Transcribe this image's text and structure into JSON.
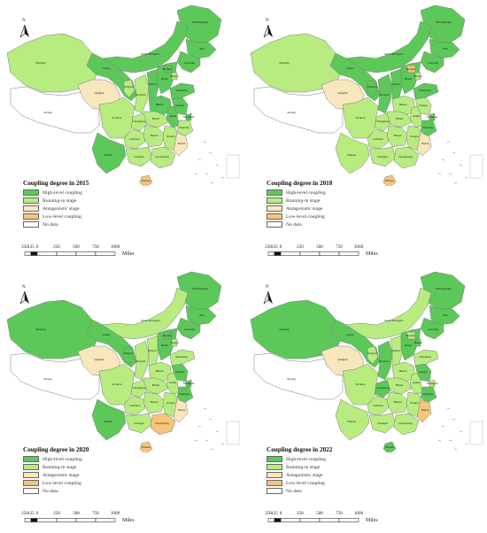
{
  "north_label": "N",
  "legend_items": [
    {
      "key": "high",
      "label": "High-level coupling",
      "color": "#5dc85a"
    },
    {
      "key": "running",
      "label": "Running-in stage",
      "color": "#b8ec80"
    },
    {
      "key": "antagonistic",
      "label": "Antagonistic stage",
      "color": "#f8e7bd"
    },
    {
      "key": "low",
      "label": "Low-level coupling",
      "color": "#f6c57a"
    },
    {
      "key": "nodata",
      "label": "No data",
      "color": "#ffffff"
    }
  ],
  "scale": {
    "ticks": [
      "250",
      "125",
      "0",
      "250",
      "500",
      "750",
      "1000"
    ],
    "unit": "Miles"
  },
  "provinces": [
    "Heilongjiang",
    "Jilin",
    "Liaoning",
    "Inner Mongolia",
    "Xinjiang",
    "Xizang",
    "Qinghai",
    "Gansu",
    "Ningxia",
    "Shaanxi",
    "Shanxi",
    "Hebei",
    "Beijing",
    "Tianjin",
    "Shandong",
    "Henan",
    "Jiangsu",
    "Anhui",
    "Hubei",
    "Sichuan",
    "Chongqing",
    "Guizhou",
    "Yunnan",
    "Hunan",
    "Jiangxi",
    "Zhejiang",
    "Shanghai",
    "Fujian",
    "Guangxi",
    "Guangdong",
    "Hainan"
  ],
  "maps": [
    {
      "title": "Coupling degree in 2015",
      "classes": {
        "Heilongjiang": "high",
        "Jilin": "high",
        "Liaoning": "high",
        "Inner Mongolia": "high",
        "Xinjiang": "running",
        "Xizang": "nodata",
        "Qinghai": "antagonistic",
        "Gansu": "high",
        "Ningxia": "running",
        "Shaanxi": "running",
        "Shanxi": "high",
        "Hebei": "high",
        "Beijing": "high",
        "Tianjin": "running",
        "Shandong": "high",
        "Henan": "high",
        "Jiangsu": "high",
        "Anhui": "high",
        "Hubei": "running",
        "Sichuan": "running",
        "Chongqing": "running",
        "Guizhou": "running",
        "Yunnan": "high",
        "Hunan": "running",
        "Jiangxi": "running",
        "Zhejiang": "running",
        "Shanghai": "high",
        "Fujian": "antagonistic",
        "Guangxi": "running",
        "Guangdong": "running",
        "Hainan": "low"
      }
    },
    {
      "title": "Coupling degree in 2018",
      "classes": {
        "Heilongjiang": "high",
        "Jilin": "high",
        "Liaoning": "high",
        "Inner Mongolia": "high",
        "Xinjiang": "running",
        "Xizang": "nodata",
        "Qinghai": "antagonistic",
        "Gansu": "high",
        "Ningxia": "high",
        "Shaanxi": "high",
        "Shanxi": "high",
        "Hebei": "high",
        "Beijing": "low",
        "Tianjin": "running",
        "Shandong": "high",
        "Henan": "running",
        "Jiangsu": "running",
        "Anhui": "running",
        "Hubei": "running",
        "Sichuan": "running",
        "Chongqing": "running",
        "Guizhou": "running",
        "Yunnan": "running",
        "Hunan": "running",
        "Jiangxi": "running",
        "Zhejiang": "high",
        "Shanghai": "high",
        "Fujian": "antagonistic",
        "Guangxi": "running",
        "Guangdong": "running",
        "Hainan": "low"
      }
    },
    {
      "title": "Coupling degree in 2020",
      "classes": {
        "Heilongjiang": "high",
        "Jilin": "high",
        "Liaoning": "high",
        "Inner Mongolia": "running",
        "Xinjiang": "high",
        "Xizang": "nodata",
        "Qinghai": "antagonistic",
        "Gansu": "high",
        "Ningxia": "high",
        "Shaanxi": "running",
        "Shanxi": "running",
        "Hebei": "high",
        "Beijing": "high",
        "Tianjin": "running",
        "Shandong": "running",
        "Henan": "running",
        "Jiangsu": "high",
        "Anhui": "running",
        "Hubei": "running",
        "Sichuan": "running",
        "Chongqing": "running",
        "Guizhou": "running",
        "Yunnan": "high",
        "Hunan": "running",
        "Jiangxi": "running",
        "Zhejiang": "high",
        "Shanghai": "high",
        "Fujian": "antagonistic",
        "Guangxi": "running",
        "Guangdong": "low",
        "Hainan": "low"
      }
    },
    {
      "title": "Coupling degree in 2022",
      "classes": {
        "Heilongjiang": "high",
        "Jilin": "high",
        "Liaoning": "high",
        "Inner Mongolia": "running",
        "Xinjiang": "high",
        "Xizang": "nodata",
        "Qinghai": "antagonistic",
        "Gansu": "high",
        "Ningxia": "running",
        "Shaanxi": "high",
        "Shanxi": "running",
        "Hebei": "high",
        "Beijing": "running",
        "Tianjin": "high",
        "Shandong": "running",
        "Henan": "running",
        "Jiangsu": "high",
        "Anhui": "running",
        "Hubei": "running",
        "Sichuan": "running",
        "Chongqing": "high",
        "Guizhou": "running",
        "Yunnan": "running",
        "Hunan": "running",
        "Jiangxi": "running",
        "Zhejiang": "high",
        "Shanghai": "running",
        "Fujian": "low",
        "Guangxi": "running",
        "Guangdong": "running",
        "Hainan": "high"
      }
    }
  ]
}
